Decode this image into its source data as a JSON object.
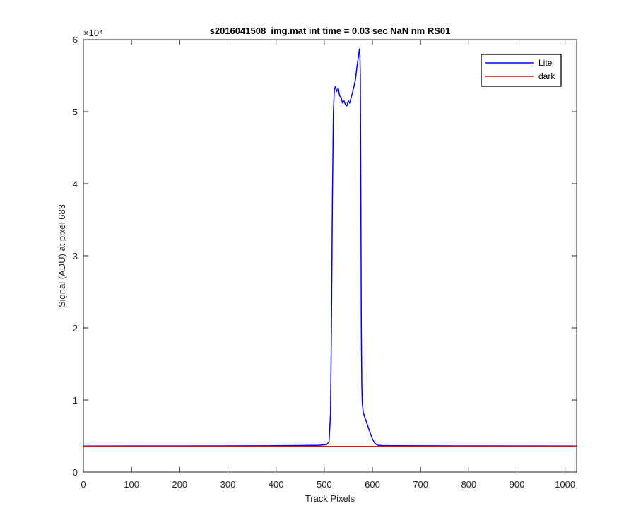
{
  "chart_data": {
    "type": "line",
    "title": "s2016041508_img.mat int time = 0.03 sec  NaN nm RS01",
    "xlabel": "Track Pixels",
    "ylabel": "Signal (ADU) at pixel 683",
    "y_exponent_label": "×10⁴",
    "xlim": [
      0,
      1024
    ],
    "ylim": [
      0,
      60000
    ],
    "x_ticks": [
      0,
      100,
      200,
      300,
      400,
      500,
      600,
      700,
      800,
      900,
      1000
    ],
    "x_tick_labels": [
      "0",
      "100",
      "200",
      "300",
      "400",
      "500",
      "600",
      "700",
      "800",
      "900",
      "1000"
    ],
    "y_ticks": [
      0,
      10000,
      20000,
      30000,
      40000,
      50000,
      60000
    ],
    "y_tick_labels": [
      "0",
      "1",
      "2",
      "3",
      "4",
      "5",
      "6"
    ],
    "grid": false,
    "legend": "top-right",
    "series": [
      {
        "name": "Lite",
        "color": "#0000ff",
        "x": [
          0,
          100,
          200,
          300,
          400,
          450,
          490,
          505,
          510,
          513,
          515,
          517,
          519,
          521,
          523,
          526,
          529,
          532,
          535,
          538,
          541,
          544,
          547,
          550,
          553,
          556,
          559,
          562,
          565,
          568,
          571,
          573,
          574,
          575,
          576,
          577,
          578,
          579,
          581,
          584,
          588,
          592,
          596,
          600,
          605,
          610,
          615,
          620,
          640,
          700,
          800,
          900,
          1024
        ],
        "y": [
          3600,
          3620,
          3620,
          3630,
          3650,
          3680,
          3720,
          3800,
          4200,
          8000,
          20000,
          38000,
          50000,
          53000,
          53500,
          52800,
          53300,
          52200,
          52000,
          51200,
          51500,
          51000,
          50800,
          51500,
          51200,
          52000,
          52700,
          53600,
          54500,
          56300,
          57600,
          58700,
          58000,
          55000,
          40000,
          20000,
          12000,
          9500,
          8300,
          7600,
          6900,
          6100,
          5300,
          4600,
          4000,
          3750,
          3700,
          3680,
          3660,
          3640,
          3630,
          3620,
          3610
        ]
      },
      {
        "name": "dark",
        "color": "#ff0000",
        "x": [
          0,
          1024
        ],
        "y": [
          3550,
          3550
        ]
      }
    ]
  }
}
